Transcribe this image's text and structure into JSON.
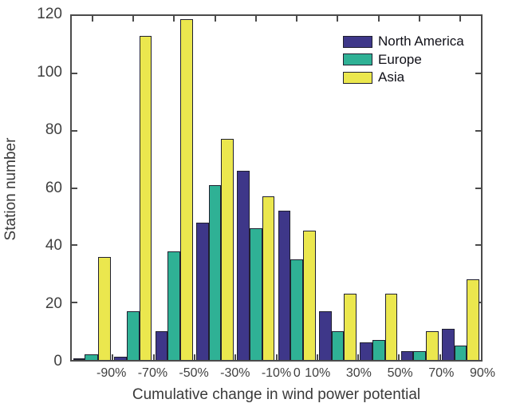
{
  "chart_data": {
    "type": "bar",
    "title": "",
    "xlabel": "Cumulative change in wind power potential",
    "ylabel": "Station number",
    "ylim": [
      0,
      120
    ],
    "yticks": [
      0,
      20,
      40,
      60,
      80,
      100,
      120
    ],
    "grid": false,
    "legend_position": "top-right",
    "bins": 10,
    "series": [
      {
        "name": "North America",
        "color": "#3e3789",
        "values": [
          0,
          1,
          10,
          48,
          66,
          52,
          17,
          6,
          3,
          11
        ]
      },
      {
        "name": "Europe",
        "color": "#2fb195",
        "values": [
          2,
          17,
          38,
          61,
          46,
          35,
          10,
          7,
          3,
          5
        ]
      },
      {
        "name": "Asia",
        "color": "#ebe74e",
        "values": [
          36,
          113,
          119,
          77,
          57,
          45,
          23,
          23,
          10,
          28
        ]
      }
    ],
    "xticks": [
      {
        "label": "-90%",
        "pos_pct": 10
      },
      {
        "label": "-70%",
        "pos_pct": 20
      },
      {
        "label": "-50%",
        "pos_pct": 30
      },
      {
        "label": "-30%",
        "pos_pct": 40
      },
      {
        "label": "-10%",
        "pos_pct": 50
      },
      {
        "label": "0",
        "pos_pct": 55
      },
      {
        "label": "10%",
        "pos_pct": 60
      },
      {
        "label": "30%",
        "pos_pct": 70
      },
      {
        "label": "50%",
        "pos_pct": 80
      },
      {
        "label": "70%",
        "pos_pct": 90
      },
      {
        "label": "90%",
        "pos_pct": 100
      }
    ],
    "bottom_tick_pcts": [
      10,
      20,
      30,
      40,
      50,
      60,
      70,
      80,
      90
    ],
    "top_tick_pcts": [
      5,
      15,
      25,
      35,
      45,
      55,
      65,
      75,
      85,
      95
    ],
    "side_tick_values": [
      20,
      40,
      60,
      80,
      100
    ],
    "colors": {
      "axis": "#4b4b4b",
      "tick_text": "#3f3f3f",
      "label_text": "#3a3a3a",
      "bar_edge": "#202030",
      "background": "#ffffff"
    }
  }
}
